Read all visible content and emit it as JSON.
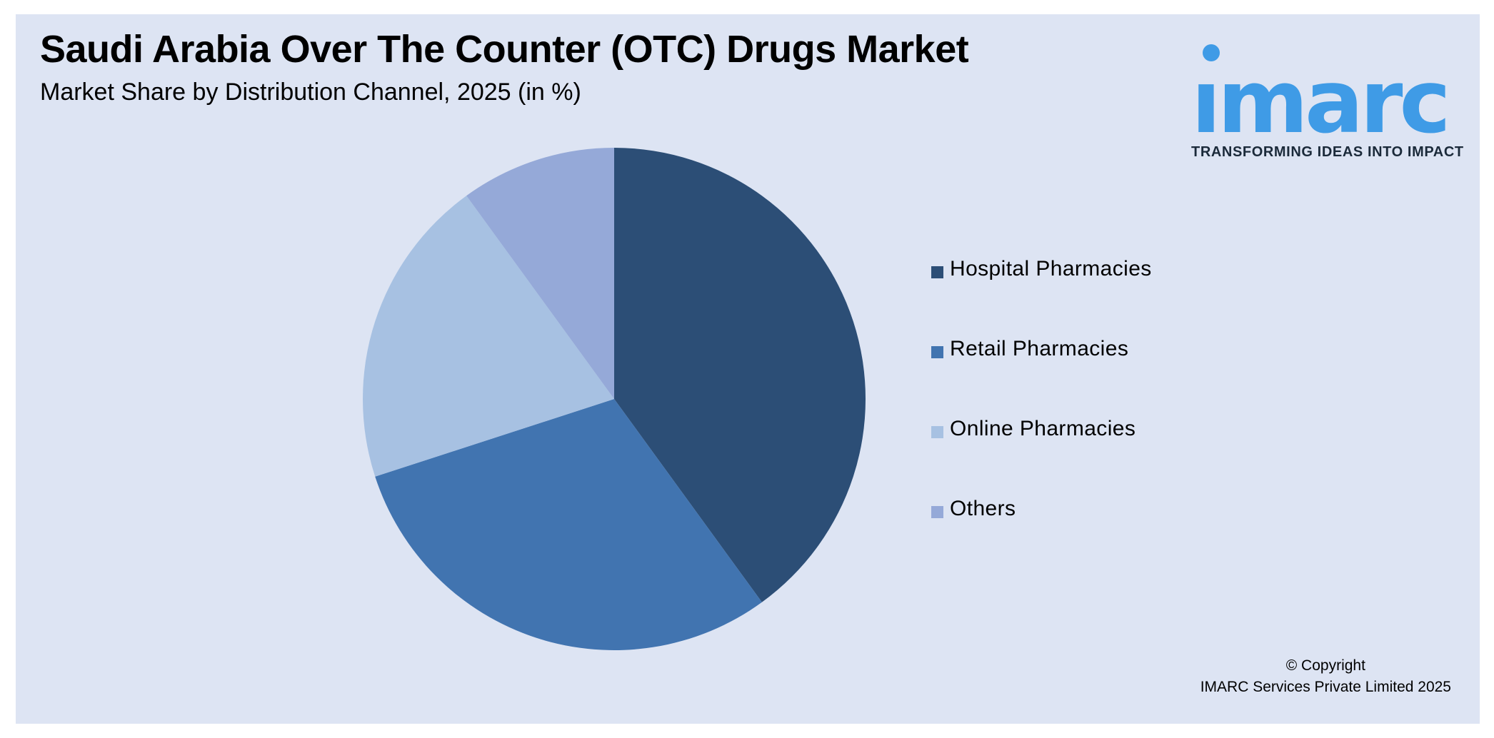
{
  "header": {
    "title": "Saudi Arabia Over The Counter (OTC) Drugs Market",
    "subtitle": "Market Share by Distribution Channel, 2025 (in %)"
  },
  "logo": {
    "wordmark": "imarc",
    "tagline": "TRANSFORMING IDEAS INTO IMPACT",
    "color": "#3f9be6"
  },
  "chart_data": {
    "type": "pie",
    "title": "Saudi Arabia Over The Counter (OTC) Drugs Market",
    "subtitle": "Market Share by Distribution Channel, 2025 (in %)",
    "categories": [
      "Hospital Pharmacies",
      "Retail Pharmacies",
      "Online Pharmacies",
      "Others"
    ],
    "values": [
      40,
      30,
      20,
      10
    ],
    "colors": [
      "#2c4e76",
      "#4174b0",
      "#a7c1e2",
      "#95a9d8"
    ],
    "start_angle": "12 o'clock",
    "direction": "clockwise",
    "legend_position": "right"
  },
  "footer": {
    "copyright_line1": "© Copyright",
    "copyright_line2": "IMARC Services Private Limited 2025"
  },
  "colors": {
    "background": "#dde4f3",
    "frame_border": "#ffffff"
  }
}
